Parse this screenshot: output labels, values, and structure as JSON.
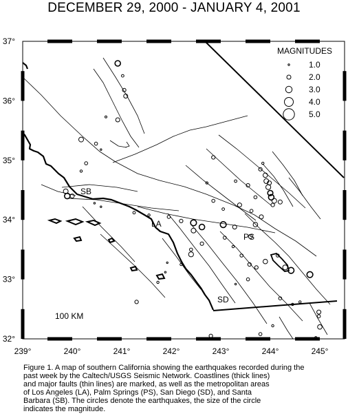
{
  "title": "DECEMBER 29, 2000 - JANUARY 4, 2001",
  "axes": {
    "lon_labels": [
      "239°",
      "240°",
      "241°",
      "242°",
      "243°",
      "244°",
      "245°"
    ],
    "lat_labels": [
      "37°",
      "36°",
      "35°",
      "34°",
      "33°",
      "32°"
    ]
  },
  "legend": {
    "title": "MAGNITUDES",
    "entries": [
      "1.0",
      "2.0",
      "3.0",
      "4.0",
      "5.0"
    ]
  },
  "labels": {
    "sb": "SB",
    "la": "LA",
    "ps": "PS",
    "sd": "SD"
  },
  "scale_label": "100 KM",
  "caption_lines": [
    "Figure 1. A map of southern California showing the earthquakes recorded during the",
    "past week by the Caltech/USGS Seismic Network.  Coastlines (thick lines)",
    "and major faults (thin lines) are marked, as well as the metropolitan areas",
    "of Los Angeles (LA), Palm Springs (PS), San Diego (SD), and Santa",
    "Barbara (SB).  The circles denote the earthquakes, the size of the circle",
    "indicates the magnitude."
  ],
  "earthquakes": [
    {
      "lon": 240.92,
      "lat": 36.63,
      "mag": 2.6
    },
    {
      "lon": 241.02,
      "lat": 36.42,
      "mag": 1.4
    },
    {
      "lon": 241.05,
      "lat": 36.18,
      "mag": 1.8
    },
    {
      "lon": 241.08,
      "lat": 36.08,
      "mag": 2.0
    },
    {
      "lon": 240.68,
      "lat": 35.73,
      "mag": 1.2
    },
    {
      "lon": 240.92,
      "lat": 35.68,
      "mag": 2.0
    },
    {
      "lon": 240.18,
      "lat": 35.35,
      "mag": 2.3
    },
    {
      "lon": 240.48,
      "lat": 35.28,
      "mag": 1.6
    },
    {
      "lon": 240.58,
      "lat": 35.18,
      "mag": 1.0
    },
    {
      "lon": 240.28,
      "lat": 34.95,
      "mag": 1.6
    },
    {
      "lon": 240.18,
      "lat": 34.82,
      "mag": 1.3
    },
    {
      "lon": 239.87,
      "lat": 34.48,
      "mag": 2.3
    },
    {
      "lon": 239.9,
      "lat": 34.4,
      "mag": 2.6
    },
    {
      "lon": 240.0,
      "lat": 34.4,
      "mag": 2.0
    },
    {
      "lon": 240.45,
      "lat": 34.28,
      "mag": 1.0
    },
    {
      "lon": 240.58,
      "lat": 34.22,
      "mag": 1.0
    },
    {
      "lon": 241.25,
      "lat": 34.12,
      "mag": 1.4
    },
    {
      "lon": 241.55,
      "lat": 34.08,
      "mag": 1.3
    },
    {
      "lon": 241.95,
      "lat": 34.05,
      "mag": 1.6
    },
    {
      "lon": 242.2,
      "lat": 33.98,
      "mag": 1.8
    },
    {
      "lon": 242.45,
      "lat": 33.95,
      "mag": 2.8
    },
    {
      "lon": 242.62,
      "lat": 33.88,
      "mag": 2.6
    },
    {
      "lon": 242.45,
      "lat": 33.82,
      "mag": 2.3
    },
    {
      "lon": 242.62,
      "lat": 33.6,
      "mag": 1.8
    },
    {
      "lon": 242.4,
      "lat": 33.5,
      "mag": 1.6
    },
    {
      "lon": 242.4,
      "lat": 33.42,
      "mag": 2.4
    },
    {
      "lon": 242.2,
      "lat": 33.25,
      "mag": 1.3
    },
    {
      "lon": 241.92,
      "lat": 33.28,
      "mag": 1.0
    },
    {
      "lon": 241.88,
      "lat": 33.12,
      "mag": 1.0
    },
    {
      "lon": 241.73,
      "lat": 32.95,
      "mag": 1.3
    },
    {
      "lon": 241.3,
      "lat": 32.62,
      "mag": 1.8
    },
    {
      "lon": 243.05,
      "lat": 34.18,
      "mag": 1.4
    },
    {
      "lon": 243.05,
      "lat": 33.92,
      "mag": 2.8
    },
    {
      "lon": 243.28,
      "lat": 33.88,
      "mag": 2.0
    },
    {
      "lon": 243.08,
      "lat": 33.7,
      "mag": 1.6
    },
    {
      "lon": 243.25,
      "lat": 33.55,
      "mag": 1.3
    },
    {
      "lon": 243.42,
      "lat": 33.4,
      "mag": 1.6
    },
    {
      "lon": 243.58,
      "lat": 33.25,
      "mag": 1.8
    },
    {
      "lon": 243.72,
      "lat": 33.2,
      "mag": 1.8
    },
    {
      "lon": 243.9,
      "lat": 33.3,
      "mag": 2.2
    },
    {
      "lon": 244.15,
      "lat": 33.4,
      "mag": 1.6
    },
    {
      "lon": 244.3,
      "lat": 33.2,
      "mag": 2.4
    },
    {
      "lon": 244.42,
      "lat": 33.15,
      "mag": 2.8
    },
    {
      "lon": 243.55,
      "lat": 33.0,
      "mag": 1.6
    },
    {
      "lon": 243.3,
      "lat": 32.92,
      "mag": 1.0
    },
    {
      "lon": 243.6,
      "lat": 33.72,
      "mag": 2.0
    },
    {
      "lon": 243.7,
      "lat": 33.92,
      "mag": 2.2
    },
    {
      "lon": 243.82,
      "lat": 34.05,
      "mag": 2.0
    },
    {
      "lon": 243.62,
      "lat": 34.15,
      "mag": 1.6
    },
    {
      "lon": 243.38,
      "lat": 34.25,
      "mag": 2.0
    },
    {
      "lon": 242.85,
      "lat": 34.32,
      "mag": 1.6
    },
    {
      "lon": 242.72,
      "lat": 34.62,
      "mag": 1.3
    },
    {
      "lon": 242.85,
      "lat": 35.05,
      "mag": 1.8
    },
    {
      "lon": 243.3,
      "lat": 34.65,
      "mag": 1.4
    },
    {
      "lon": 243.55,
      "lat": 34.58,
      "mag": 1.8
    },
    {
      "lon": 243.8,
      "lat": 34.85,
      "mag": 1.8
    },
    {
      "lon": 243.9,
      "lat": 34.75,
      "mag": 2.2
    },
    {
      "lon": 243.92,
      "lat": 34.65,
      "mag": 2.3
    },
    {
      "lon": 243.96,
      "lat": 34.55,
      "mag": 2.4
    },
    {
      "lon": 244.0,
      "lat": 34.45,
      "mag": 2.5
    },
    {
      "lon": 244.02,
      "lat": 34.38,
      "mag": 2.6
    },
    {
      "lon": 244.08,
      "lat": 34.32,
      "mag": 2.3
    },
    {
      "lon": 243.98,
      "lat": 34.62,
      "mag": 2.0
    },
    {
      "lon": 243.85,
      "lat": 34.95,
      "mag": 1.3
    },
    {
      "lon": 243.7,
      "lat": 34.38,
      "mag": 1.6
    },
    {
      "lon": 244.2,
      "lat": 34.3,
      "mag": 2.0
    },
    {
      "lon": 244.05,
      "lat": 34.25,
      "mag": 1.8
    },
    {
      "lon": 244.8,
      "lat": 33.08,
      "mag": 2.8
    },
    {
      "lon": 244.2,
      "lat": 32.68,
      "mag": 1.6
    },
    {
      "lon": 244.45,
      "lat": 32.58,
      "mag": 1.3
    },
    {
      "lon": 244.6,
      "lat": 32.62,
      "mag": 1.3
    },
    {
      "lon": 244.98,
      "lat": 32.45,
      "mag": 2.0
    },
    {
      "lon": 244.98,
      "lat": 32.38,
      "mag": 1.6
    },
    {
      "lon": 245.0,
      "lat": 32.2,
      "mag": 2.2
    },
    {
      "lon": 244.05,
      "lat": 32.22,
      "mag": 1.3
    },
    {
      "lon": 243.8,
      "lat": 32.08,
      "mag": 1.6
    },
    {
      "lon": 242.8,
      "lat": 32.05,
      "mag": 1.8
    },
    {
      "lon": 244.92,
      "lat": 32.02,
      "mag": 1.3
    }
  ]
}
